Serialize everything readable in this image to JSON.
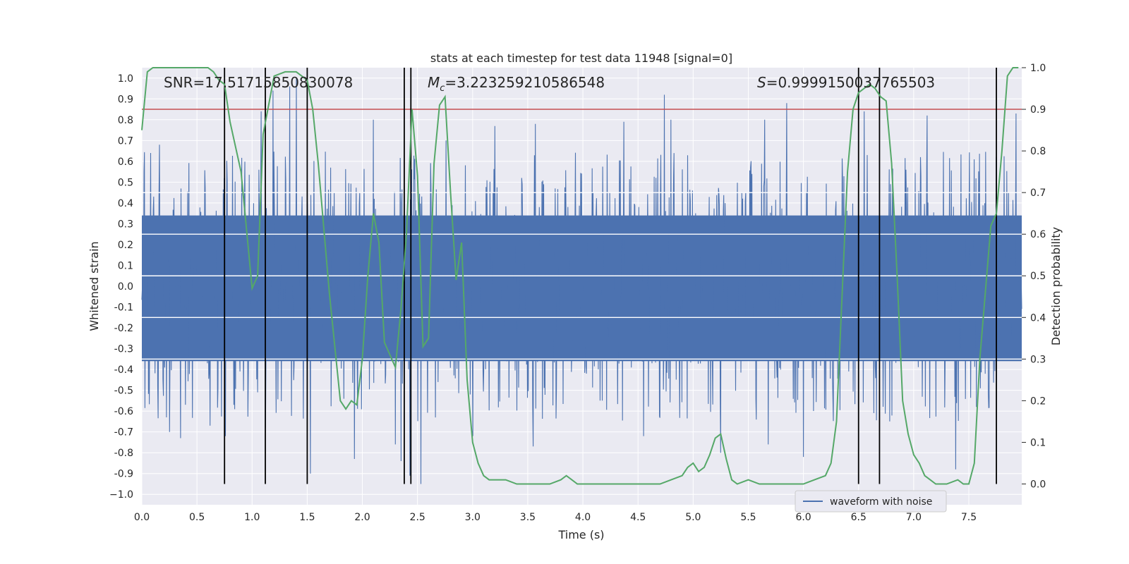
{
  "chart_data": {
    "type": "line",
    "title": "stats at each timestep for test data 11948 [signal=0]",
    "xlabel": "Time (s)",
    "ylabel": "Whitened strain",
    "y2label": "Detection probability",
    "xlim": [
      0.0,
      7.98
    ],
    "ylim": [
      -1.05,
      1.05
    ],
    "y2lim": [
      -0.05,
      1.0
    ],
    "xticks": [
      "0.0",
      "0.5",
      "1.0",
      "1.5",
      "2.0",
      "2.5",
      "3.0",
      "3.5",
      "4.0",
      "4.5",
      "5.0",
      "5.5",
      "6.0",
      "6.5",
      "7.0",
      "7.5"
    ],
    "yticks": [
      "1.0",
      "0.9",
      "0.8",
      "0.7",
      "0.6",
      "0.5",
      "0.4",
      "0.3",
      "0.2",
      "0.1",
      "0.0",
      "-0.1",
      "-0.2",
      "-0.3",
      "-0.4",
      "-0.5",
      "-0.6",
      "-0.7",
      "-0.8",
      "-0.9",
      "−1.0"
    ],
    "y2ticks": [
      "1.0",
      "0.9",
      "0.8",
      "0.7",
      "0.6",
      "0.5",
      "0.4",
      "0.3",
      "0.2",
      "0.1",
      "0.0"
    ],
    "grid": true,
    "legend": {
      "position": "lower-right",
      "entries": [
        "waveform with noise"
      ]
    },
    "annotations": {
      "snr_text": "SNR=17.51715850830078",
      "mc_symbol": "M",
      "mc_sub": "c",
      "mc_value": "=3.223259210586548",
      "s_symbol": "S",
      "s_value": "=0.9999150037765503"
    },
    "threshold": {
      "axis": "y2",
      "value": 0.9,
      "color": "#c44e52"
    },
    "vertical_lines": {
      "x": [
        0.75,
        1.12,
        1.5,
        2.38,
        2.44,
        6.5,
        6.69,
        7.75
      ],
      "y2_range": [
        0.0,
        1.0
      ],
      "color": "#000000"
    },
    "series": [
      {
        "name": "waveform with noise",
        "color": "#4c72b0",
        "kind": "noisy-waveform",
        "x_range": [
          0.0,
          7.98
        ],
        "sample_count": 2000,
        "upper_envelope": 0.34,
        "lower_envelope": -0.36,
        "spikes": [
          {
            "x": 0.02,
            "y": 0.55
          },
          {
            "x": 0.08,
            "y": 0.64
          },
          {
            "x": 0.16,
            "y": 0.68
          },
          {
            "x": 0.25,
            "y": -0.7
          },
          {
            "x": 0.35,
            "y": -0.73
          },
          {
            "x": 0.62,
            "y": -0.67
          },
          {
            "x": 0.76,
            "y": -0.72
          },
          {
            "x": 1.08,
            "y": 0.84
          },
          {
            "x": 1.12,
            "y": -0.68
          },
          {
            "x": 1.19,
            "y": 0.94
          },
          {
            "x": 1.34,
            "y": 0.96
          },
          {
            "x": 1.4,
            "y": 1.0
          },
          {
            "x": 1.53,
            "y": -0.9
          },
          {
            "x": 1.93,
            "y": -0.83
          },
          {
            "x": 2.1,
            "y": 0.8
          },
          {
            "x": 2.3,
            "y": -0.76
          },
          {
            "x": 2.35,
            "y": -0.84
          },
          {
            "x": 2.43,
            "y": -0.91
          },
          {
            "x": 2.53,
            "y": -0.95
          },
          {
            "x": 2.76,
            "y": 0.7
          },
          {
            "x": 3.0,
            "y": -0.72
          },
          {
            "x": 3.2,
            "y": 0.77
          },
          {
            "x": 3.55,
            "y": -0.77
          },
          {
            "x": 3.57,
            "y": 0.78
          },
          {
            "x": 4.37,
            "y": 0.79
          },
          {
            "x": 4.55,
            "y": -0.72
          },
          {
            "x": 4.74,
            "y": 0.92
          },
          {
            "x": 4.8,
            "y": 0.8
          },
          {
            "x": 5.25,
            "y": -0.8
          },
          {
            "x": 5.65,
            "y": 0.8
          },
          {
            "x": 5.68,
            "y": -0.76
          },
          {
            "x": 5.85,
            "y": 0.88
          },
          {
            "x": 6.0,
            "y": -0.82
          },
          {
            "x": 6.55,
            "y": 0.84
          },
          {
            "x": 7.12,
            "y": 0.82
          },
          {
            "x": 7.38,
            "y": -0.88
          },
          {
            "x": 7.93,
            "y": 0.83
          }
        ]
      },
      {
        "name": "",
        "color": "#55a868",
        "axis": "y2",
        "x": [
          0.0,
          0.05,
          0.1,
          0.2,
          0.3,
          0.45,
          0.6,
          0.65,
          0.7,
          0.75,
          0.8,
          0.9,
          1.0,
          1.05,
          1.1,
          1.2,
          1.3,
          1.4,
          1.45,
          1.5,
          1.55,
          1.6,
          1.7,
          1.8,
          1.85,
          1.9,
          1.95,
          2.0,
          2.05,
          2.1,
          2.15,
          2.2,
          2.3,
          2.35,
          2.4,
          2.45,
          2.5,
          2.55,
          2.6,
          2.65,
          2.7,
          2.75,
          2.8,
          2.85,
          2.9,
          2.95,
          3.0,
          3.05,
          3.1,
          3.15,
          3.2,
          3.3,
          3.4,
          3.5,
          3.6,
          3.7,
          3.8,
          3.85,
          3.9,
          3.95,
          4.0,
          4.2,
          4.4,
          4.6,
          4.7,
          4.8,
          4.9,
          4.95,
          5.0,
          5.05,
          5.1,
          5.15,
          5.2,
          5.25,
          5.3,
          5.35,
          5.4,
          5.5,
          5.6,
          5.7,
          5.8,
          5.9,
          6.0,
          6.1,
          6.2,
          6.25,
          6.3,
          6.35,
          6.4,
          6.45,
          6.5,
          6.55,
          6.6,
          6.65,
          6.7,
          6.75,
          6.8,
          6.85,
          6.9,
          6.95,
          7.0,
          7.05,
          7.1,
          7.15,
          7.2,
          7.3,
          7.4,
          7.45,
          7.5,
          7.55,
          7.6,
          7.7,
          7.75,
          7.8,
          7.85,
          7.9,
          7.95
        ],
        "values": [
          0.85,
          0.99,
          1.0,
          1.0,
          1.0,
          1.0,
          1.0,
          0.99,
          0.97,
          0.96,
          0.87,
          0.75,
          0.47,
          0.5,
          0.84,
          0.98,
          0.99,
          0.99,
          0.98,
          0.97,
          0.9,
          0.77,
          0.46,
          0.2,
          0.18,
          0.2,
          0.19,
          0.3,
          0.5,
          0.65,
          0.58,
          0.34,
          0.28,
          0.42,
          0.6,
          0.9,
          0.74,
          0.33,
          0.35,
          0.77,
          0.91,
          0.93,
          0.7,
          0.49,
          0.58,
          0.25,
          0.1,
          0.05,
          0.02,
          0.01,
          0.01,
          0.01,
          0.0,
          0.0,
          0.0,
          0.0,
          0.01,
          0.02,
          0.01,
          0.0,
          0.0,
          0.0,
          0.0,
          0.0,
          0.0,
          0.01,
          0.02,
          0.04,
          0.05,
          0.03,
          0.04,
          0.07,
          0.11,
          0.12,
          0.06,
          0.01,
          0.0,
          0.01,
          0.0,
          0.0,
          0.0,
          0.0,
          0.0,
          0.01,
          0.02,
          0.05,
          0.15,
          0.45,
          0.75,
          0.9,
          0.94,
          0.95,
          0.96,
          0.95,
          0.93,
          0.92,
          0.77,
          0.5,
          0.2,
          0.12,
          0.07,
          0.05,
          0.02,
          0.01,
          0.0,
          0.0,
          0.01,
          0.0,
          0.0,
          0.05,
          0.3,
          0.62,
          0.65,
          0.8,
          0.98,
          1.0,
          1.0
        ]
      }
    ]
  }
}
